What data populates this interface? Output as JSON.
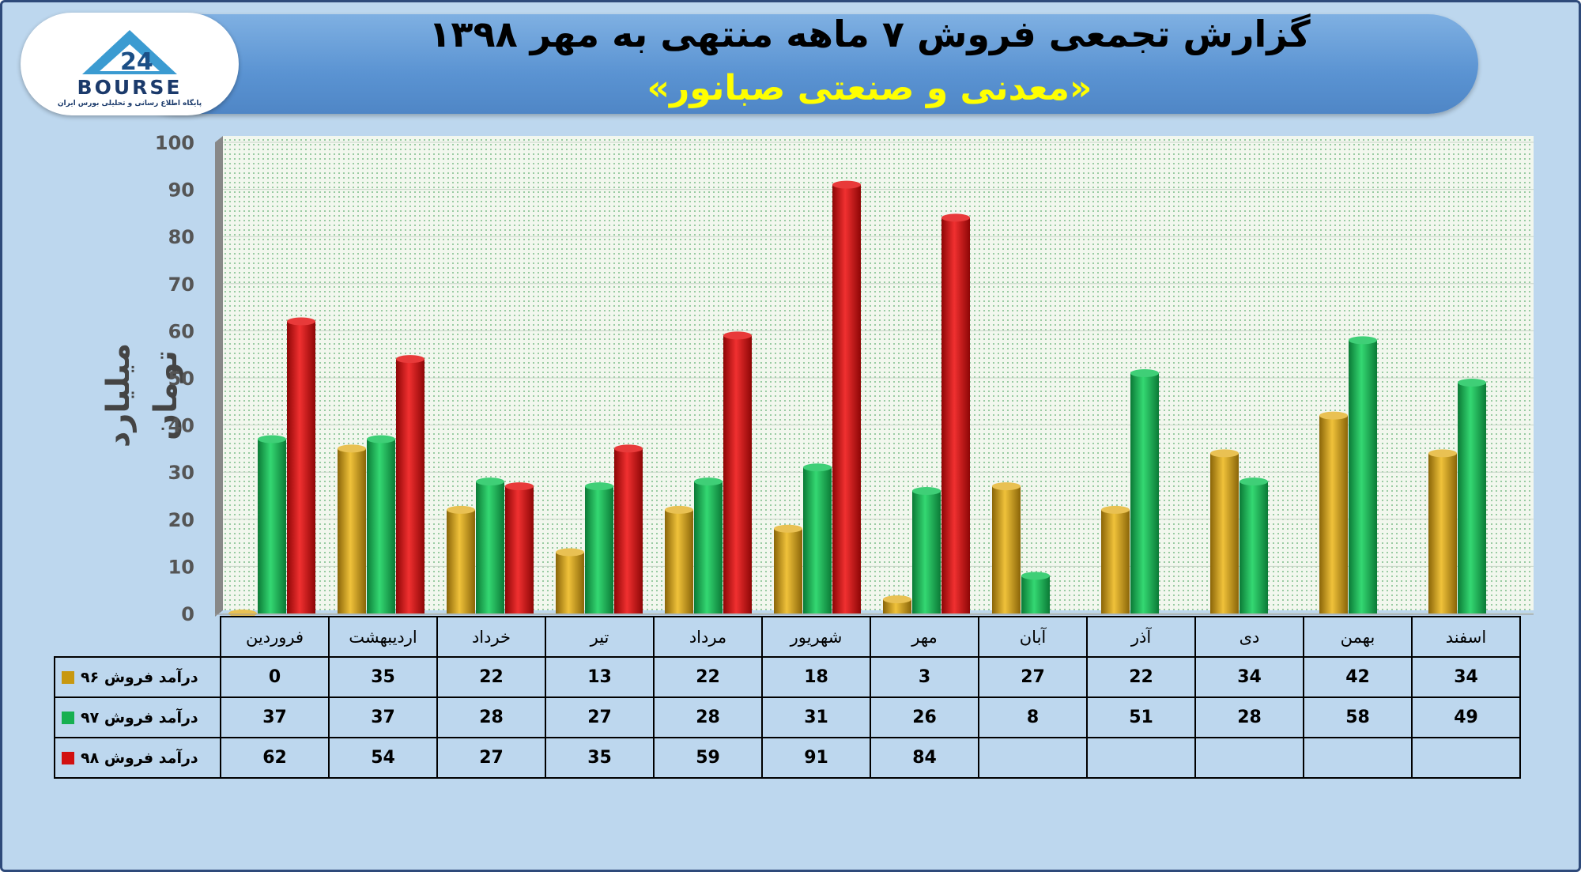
{
  "header": {
    "title": "گزارش تجمعی فروش ۷ ماهه منتهی به مهر ۱۳۹۸",
    "subtitle": "«معدنی و صنعتی صبانور»"
  },
  "logo": {
    "text": "BOURSE",
    "subtitle": "پایگاه اطلاع رسانی و تحلیلی بورس ایران"
  },
  "chart_data": {
    "type": "bar",
    "title": "گزارش تجمعی فروش ۷ ماهه منتهی به مهر ۱۳۹۸",
    "ylabel": "میلیارد تومان",
    "ylim": [
      0,
      100
    ],
    "yticks": [
      0,
      10,
      20,
      30,
      40,
      50,
      60,
      70,
      80,
      90,
      100
    ],
    "grid": true,
    "categories": [
      "فروردین",
      "اردیبهشت",
      "خرداد",
      "تیر",
      "مرداد",
      "شهریور",
      "مهر",
      "آبان",
      "آذر",
      "دی",
      "بهمن",
      "اسفند"
    ],
    "series": [
      {
        "name": "درآمد فروش ۹۶",
        "color": "#c8980f",
        "values": [
          0,
          35,
          22,
          13,
          22,
          18,
          3,
          27,
          22,
          34,
          42,
          34
        ]
      },
      {
        "name": "درآمد فروش ۹۷",
        "color": "#16b050",
        "values": [
          37,
          37,
          28,
          27,
          28,
          31,
          26,
          8,
          51,
          28,
          58,
          49
        ]
      },
      {
        "name": "درآمد فروش ۹۸",
        "color": "#d21010",
        "values": [
          62,
          54,
          27,
          35,
          59,
          91,
          84,
          null,
          null,
          null,
          null,
          null
        ]
      }
    ]
  }
}
